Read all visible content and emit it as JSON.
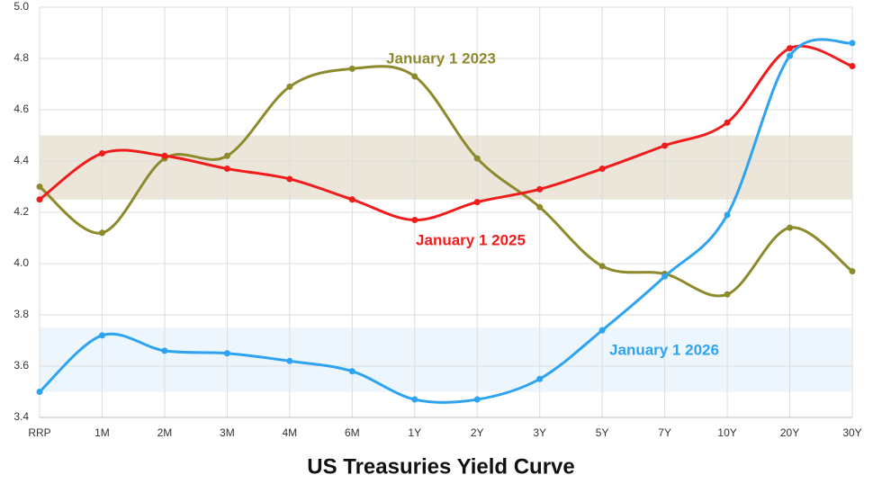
{
  "chart_data": {
    "type": "line",
    "title": "US Treasuries Yield Curve",
    "categories": [
      "RRP",
      "1M",
      "2M",
      "3M",
      "4M",
      "6M",
      "1Y",
      "2Y",
      "3Y",
      "5Y",
      "7Y",
      "10Y",
      "20Y",
      "30Y"
    ],
    "series": [
      {
        "name": "January 1 2023",
        "color": "#8c8a2a",
        "values": [
          4.3,
          4.12,
          4.41,
          4.42,
          4.69,
          4.76,
          4.73,
          4.41,
          4.22,
          3.99,
          3.96,
          3.88,
          4.14,
          3.97
        ]
      },
      {
        "name": "January 1 2025",
        "color": "#f01c1c",
        "values": [
          4.25,
          4.43,
          4.42,
          4.37,
          4.33,
          4.25,
          4.17,
          4.24,
          4.29,
          4.37,
          4.46,
          4.55,
          4.84,
          4.77
        ]
      },
      {
        "name": "January 1 2026",
        "color": "#2ea3f2",
        "values": [
          3.5,
          3.72,
          3.66,
          3.65,
          3.62,
          3.58,
          3.47,
          3.47,
          3.55,
          3.74,
          3.95,
          4.19,
          4.81,
          4.86
        ]
      }
    ],
    "bands": [
      {
        "from": 4.25,
        "to": 4.5,
        "color": "#ece6da"
      },
      {
        "from": 3.5,
        "to": 3.75,
        "color": "#eef6fd"
      }
    ],
    "ylim": [
      3.4,
      5.0
    ],
    "yticks": [
      3.4,
      3.6,
      3.8,
      {
        "value": 4,
        "label": "4.0"
      },
      4.2,
      4.4,
      4.6,
      4.8,
      {
        "value": 5,
        "label": "5.0"
      }
    ],
    "grid": true
  }
}
